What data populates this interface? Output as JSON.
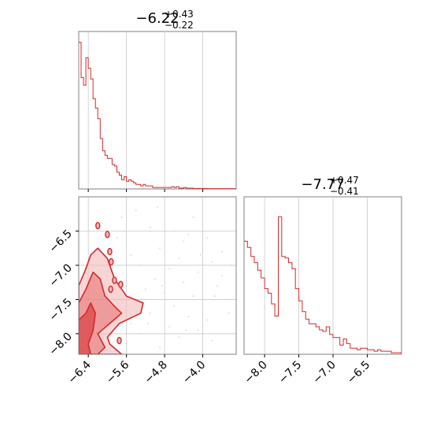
{
  "colors": {
    "accent": "#d62728",
    "fill_light": "#f3b9b9",
    "fill_mid": "#e87474",
    "grid": "#c8c8c8",
    "frame": "#808080"
  },
  "chart_data": [
    {
      "type": "histogram",
      "panel": "top-left",
      "title": {
        "value": "−6.22",
        "upper": "+0.43",
        "lower": "−0.22"
      },
      "xlim": [
        -6.6,
        -3.3
      ],
      "x_ticks": [
        -6.4,
        -5.6,
        -4.8,
        -4.0
      ],
      "grid": true,
      "bins": [
        {
          "x": -6.6,
          "count": 0.96
        },
        {
          "x": -6.55,
          "count": 0.73
        },
        {
          "x": -6.5,
          "count": 0.68
        },
        {
          "x": -6.45,
          "count": 0.86
        },
        {
          "x": -6.4,
          "count": 0.79
        },
        {
          "x": -6.35,
          "count": 0.72
        },
        {
          "x": -6.3,
          "count": 0.59
        },
        {
          "x": -6.25,
          "count": 0.53
        },
        {
          "x": -6.2,
          "count": 0.46
        },
        {
          "x": -6.15,
          "count": 0.33
        },
        {
          "x": -6.1,
          "count": 0.25
        },
        {
          "x": -6.05,
          "count": 0.22
        },
        {
          "x": -6.0,
          "count": 0.2
        },
        {
          "x": -5.95,
          "count": 0.2
        },
        {
          "x": -5.9,
          "count": 0.16
        },
        {
          "x": -5.85,
          "count": 0.15
        },
        {
          "x": -5.8,
          "count": 0.11
        },
        {
          "x": -5.75,
          "count": 0.09
        },
        {
          "x": -5.7,
          "count": 0.06
        },
        {
          "x": -5.65,
          "count": 0.08
        },
        {
          "x": -5.6,
          "count": 0.05
        },
        {
          "x": -5.55,
          "count": 0.06
        },
        {
          "x": -5.5,
          "count": 0.05
        },
        {
          "x": -5.45,
          "count": 0.04
        },
        {
          "x": -5.4,
          "count": 0.03
        },
        {
          "x": -5.35,
          "count": 0.03
        },
        {
          "x": -5.3,
          "count": 0.02
        },
        {
          "x": -5.25,
          "count": 0.03
        },
        {
          "x": -5.2,
          "count": 0.02
        },
        {
          "x": -5.15,
          "count": 0.02
        },
        {
          "x": -5.1,
          "count": 0.02
        },
        {
          "x": -5.05,
          "count": 0.01
        },
        {
          "x": -5.0,
          "count": 0.01
        },
        {
          "x": -4.95,
          "count": 0.01
        },
        {
          "x": -4.9,
          "count": 0.01
        },
        {
          "x": -4.85,
          "count": 0.01
        },
        {
          "x": -4.8,
          "count": 0.01
        },
        {
          "x": -4.75,
          "count": 0.01
        },
        {
          "x": -4.7,
          "count": 0.01
        },
        {
          "x": -4.65,
          "count": 0.015
        },
        {
          "x": -4.6,
          "count": 0.01
        },
        {
          "x": -4.55,
          "count": 0.015
        },
        {
          "x": -4.5,
          "count": 0.005
        },
        {
          "x": -4.45,
          "count": 0.005
        },
        {
          "x": -4.4,
          "count": 0.01
        },
        {
          "x": -4.35,
          "count": 0.005
        },
        {
          "x": -4.3,
          "count": 0.005
        },
        {
          "x": -4.25,
          "count": 0.005
        },
        {
          "x": -4.2,
          "count": 0.003
        },
        {
          "x": -4.15,
          "count": 0.003
        },
        {
          "x": -4.1,
          "count": 0.003
        },
        {
          "x": -4.05,
          "count": 0.003
        },
        {
          "x": -4.0,
          "count": 0.003
        },
        {
          "x": -3.95,
          "count": 0.003
        },
        {
          "x": -3.9,
          "count": 0.002
        },
        {
          "x": -3.85,
          "count": 0.002
        },
        {
          "x": -3.8,
          "count": 0.002
        },
        {
          "x": -3.75,
          "count": 0.002
        },
        {
          "x": -3.7,
          "count": 0.002
        },
        {
          "x": -3.65,
          "count": 0.002
        },
        {
          "x": -3.6,
          "count": 0.002
        },
        {
          "x": -3.55,
          "count": 0.002
        },
        {
          "x": -3.5,
          "count": 0.002
        },
        {
          "x": -3.45,
          "count": 0.002
        },
        {
          "x": -3.4,
          "count": 0.002
        },
        {
          "x": -3.35,
          "count": 0.002
        }
      ],
      "bin_width": 0.05,
      "ymax": 1.0
    },
    {
      "type": "contour-scatter",
      "panel": "bottom-left",
      "xlim": [
        -6.6,
        -3.3
      ],
      "ylim": [
        -8.3,
        -6.0
      ],
      "x_ticks": [
        -6.4,
        -5.6,
        -4.8,
        -4.0
      ],
      "y_ticks": [
        -6.5,
        -7.0,
        -7.5,
        -8.0
      ],
      "grid": true,
      "contour_levels": [
        {
          "level": "outer",
          "points": [
            [
              -6.6,
              -8.3
            ],
            [
              -6.6,
              -7.3
            ],
            [
              -6.45,
              -7.05
            ],
            [
              -6.35,
              -6.85
            ],
            [
              -6.2,
              -6.75
            ],
            [
              -6.0,
              -6.9
            ],
            [
              -5.85,
              -7.2
            ],
            [
              -5.6,
              -7.45
            ],
            [
              -5.25,
              -7.55
            ],
            [
              -5.3,
              -7.7
            ],
            [
              -5.75,
              -7.85
            ],
            [
              -6.0,
              -8.05
            ],
            [
              -5.95,
              -8.15
            ],
            [
              -5.7,
              -8.3
            ]
          ]
        },
        {
          "level": "middle",
          "points": [
            [
              -6.6,
              -8.3
            ],
            [
              -6.6,
              -7.55
            ],
            [
              -6.45,
              -7.35
            ],
            [
              -6.3,
              -7.1
            ],
            [
              -6.15,
              -7.2
            ],
            [
              -6.05,
              -7.45
            ],
            [
              -5.85,
              -7.6
            ],
            [
              -5.7,
              -7.7
            ],
            [
              -5.95,
              -7.85
            ],
            [
              -6.2,
              -8.0
            ],
            [
              -6.05,
              -8.2
            ],
            [
              -6.2,
              -8.3
            ]
          ]
        },
        {
          "level": "inner",
          "points": [
            [
              -6.6,
              -8.3
            ],
            [
              -6.6,
              -7.8
            ],
            [
              -6.45,
              -7.7
            ],
            [
              -6.35,
              -7.55
            ],
            [
              -6.25,
              -7.7
            ],
            [
              -6.3,
              -7.95
            ],
            [
              -6.4,
              -8.15
            ],
            [
              -6.35,
              -8.3
            ]
          ]
        }
      ],
      "islands": [
        {
          "x": -6.2,
          "y": -6.42
        },
        {
          "x": -5.92,
          "y": -6.95
        },
        {
          "x": -5.85,
          "y": -7.22
        },
        {
          "x": -5.72,
          "y": -7.28
        },
        {
          "x": -5.75,
          "y": -8.1
        },
        {
          "x": -5.95,
          "y": -6.8
        },
        {
          "x": -6.0,
          "y": -6.55
        },
        {
          "x": -5.93,
          "y": -7.35
        }
      ],
      "scatter": [
        [
          -5.1,
          -6.45
        ],
        [
          -4.6,
          -6.5
        ],
        [
          -4.3,
          -6.55
        ],
        [
          -3.9,
          -6.6
        ],
        [
          -4.9,
          -6.75
        ],
        [
          -5.5,
          -6.85
        ],
        [
          -4.5,
          -6.9
        ],
        [
          -3.8,
          -6.95
        ],
        [
          -5.3,
          -7.0
        ],
        [
          -4.7,
          -7.05
        ],
        [
          -4.1,
          -7.1
        ],
        [
          -3.6,
          -7.15
        ],
        [
          -5.0,
          -7.2
        ],
        [
          -4.4,
          -7.25
        ],
        [
          -3.7,
          -7.3
        ],
        [
          -5.2,
          -7.35
        ],
        [
          -4.8,
          -7.4
        ],
        [
          -4.2,
          -7.45
        ],
        [
          -3.5,
          -7.5
        ],
        [
          -5.4,
          -7.55
        ],
        [
          -4.6,
          -7.6
        ],
        [
          -4.0,
          -7.65
        ],
        [
          -5.1,
          -7.7
        ],
        [
          -4.3,
          -7.75
        ],
        [
          -3.9,
          -7.8
        ],
        [
          -5.5,
          -7.85
        ],
        [
          -4.7,
          -7.9
        ],
        [
          -4.1,
          -7.95
        ],
        [
          -5.3,
          -8.0
        ],
        [
          -4.5,
          -8.05
        ],
        [
          -3.8,
          -8.1
        ],
        [
          -5.6,
          -8.15
        ],
        [
          -4.9,
          -8.2
        ],
        [
          -5.7,
          -6.3
        ],
        [
          -5.4,
          -6.2
        ],
        [
          -4.2,
          -6.3
        ],
        [
          -3.6,
          -6.8
        ],
        [
          -5.8,
          -6.6
        ],
        [
          -4.4,
          -6.65
        ],
        [
          -3.4,
          -7.0
        ],
        [
          -4.95,
          -6.15
        ],
        [
          -5.65,
          -6.5
        ],
        [
          -4.05,
          -6.85
        ],
        [
          -3.75,
          -7.45
        ],
        [
          -4.35,
          -7.95
        ],
        [
          -5.15,
          -7.85
        ],
        [
          -3.45,
          -7.7
        ],
        [
          -4.85,
          -7.3
        ]
      ]
    },
    {
      "type": "histogram",
      "panel": "bottom-right",
      "title": {
        "value": "−7.77",
        "upper": "+0.47",
        "lower": "−0.41"
      },
      "xlim": [
        -8.3,
        -6.0
      ],
      "x_ticks": [
        -8.0,
        -7.5,
        -7.0,
        -6.5
      ],
      "grid": true,
      "bins": [
        {
          "x": -8.3,
          "count": 0.74
        },
        {
          "x": -8.25,
          "count": 0.7
        },
        {
          "x": -8.2,
          "count": 0.64
        },
        {
          "x": -8.15,
          "count": 0.6
        },
        {
          "x": -8.1,
          "count": 0.55
        },
        {
          "x": -8.05,
          "count": 0.5
        },
        {
          "x": -8.0,
          "count": 0.43
        },
        {
          "x": -7.95,
          "count": 0.4
        },
        {
          "x": -7.9,
          "count": 0.33
        },
        {
          "x": -7.85,
          "count": 0.25
        },
        {
          "x": -7.8,
          "count": 0.9
        },
        {
          "x": -7.75,
          "count": 0.64
        },
        {
          "x": -7.7,
          "count": 0.63
        },
        {
          "x": -7.65,
          "count": 0.6
        },
        {
          "x": -7.6,
          "count": 0.56
        },
        {
          "x": -7.55,
          "count": 0.43
        },
        {
          "x": -7.5,
          "count": 0.35
        },
        {
          "x": -7.45,
          "count": 0.28
        },
        {
          "x": -7.4,
          "count": 0.23
        },
        {
          "x": -7.35,
          "count": 0.2
        },
        {
          "x": -7.3,
          "count": 0.2
        },
        {
          "x": -7.25,
          "count": 0.18
        },
        {
          "x": -7.2,
          "count": 0.16
        },
        {
          "x": -7.15,
          "count": 0.15
        },
        {
          "x": -7.1,
          "count": 0.18
        },
        {
          "x": -7.05,
          "count": 0.13
        },
        {
          "x": -7.0,
          "count": 0.11
        },
        {
          "x": -6.95,
          "count": 0.11
        },
        {
          "x": -6.9,
          "count": 0.06
        },
        {
          "x": -6.85,
          "count": 0.1
        },
        {
          "x": -6.8,
          "count": 0.07
        },
        {
          "x": -6.75,
          "count": 0.04
        },
        {
          "x": -6.7,
          "count": 0.04
        },
        {
          "x": -6.65,
          "count": 0.03
        },
        {
          "x": -6.6,
          "count": 0.04
        },
        {
          "x": -6.55,
          "count": 0.04
        },
        {
          "x": -6.5,
          "count": 0.03
        },
        {
          "x": -6.45,
          "count": 0.03
        },
        {
          "x": -6.4,
          "count": 0.02
        },
        {
          "x": -6.35,
          "count": 0.03
        },
        {
          "x": -6.3,
          "count": 0.02
        },
        {
          "x": -6.25,
          "count": 0.02
        },
        {
          "x": -6.2,
          "count": 0.02
        },
        {
          "x": -6.15,
          "count": 0.01
        },
        {
          "x": -6.1,
          "count": 0.01
        },
        {
          "x": -6.05,
          "count": 0.01
        }
      ],
      "bin_width": 0.05,
      "ymax": 1.0
    }
  ]
}
